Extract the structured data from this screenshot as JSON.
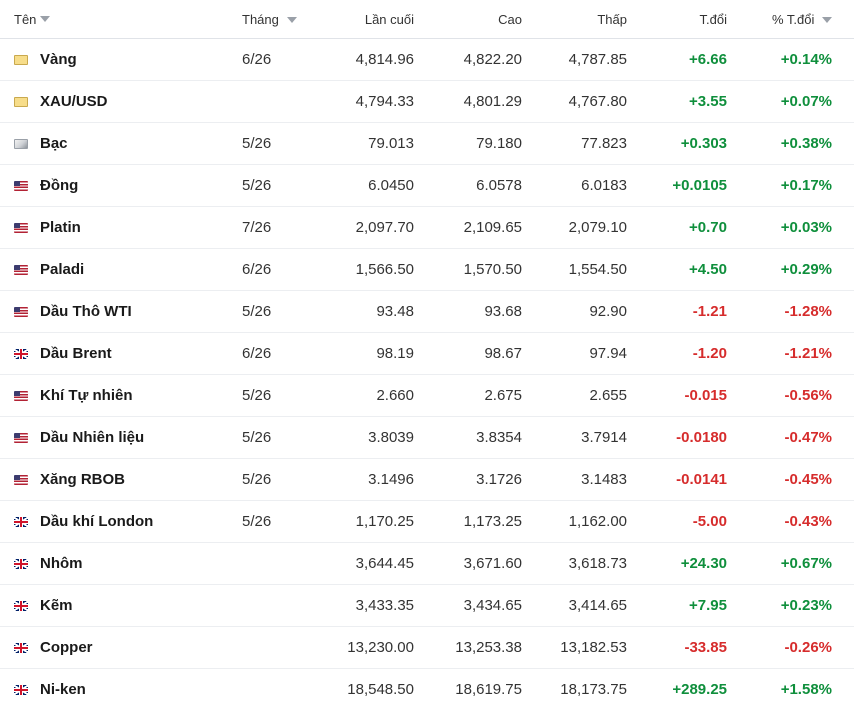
{
  "header": {
    "name": "Tên",
    "month": "Tháng",
    "last": "Lần cuối",
    "high": "Cao",
    "low": "Thấp",
    "change": "T.đổi",
    "change_pct": "% T.đổi"
  },
  "rows": [
    {
      "flag": "gold-icon",
      "name": "Vàng",
      "month": "6/26",
      "last": "4,814.96",
      "high": "4,822.20",
      "low": "4,787.85",
      "change": "+6.66",
      "change_pct": "+0.14%",
      "dir": "up"
    },
    {
      "flag": "gold-icon",
      "name": "XAU/USD",
      "month": "",
      "last": "4,794.33",
      "high": "4,801.29",
      "low": "4,767.80",
      "change": "+3.55",
      "change_pct": "+0.07%",
      "dir": "up"
    },
    {
      "flag": "silver-icon",
      "name": "Bạc",
      "month": "5/26",
      "last": "79.013",
      "high": "79.180",
      "low": "77.823",
      "change": "+0.303",
      "change_pct": "+0.38%",
      "dir": "up"
    },
    {
      "flag": "us-flag-icon",
      "name": "Đồng",
      "month": "5/26",
      "last": "6.0450",
      "high": "6.0578",
      "low": "6.0183",
      "change": "+0.0105",
      "change_pct": "+0.17%",
      "dir": "up"
    },
    {
      "flag": "us-flag-icon",
      "name": "Platin",
      "month": "7/26",
      "last": "2,097.70",
      "high": "2,109.65",
      "low": "2,079.10",
      "change": "+0.70",
      "change_pct": "+0.03%",
      "dir": "up"
    },
    {
      "flag": "us-flag-icon",
      "name": "Paladi",
      "month": "6/26",
      "last": "1,566.50",
      "high": "1,570.50",
      "low": "1,554.50",
      "change": "+4.50",
      "change_pct": "+0.29%",
      "dir": "up"
    },
    {
      "flag": "us-flag-icon",
      "name": "Dầu Thô WTI",
      "month": "5/26",
      "last": "93.48",
      "high": "93.68",
      "low": "92.90",
      "change": "-1.21",
      "change_pct": "-1.28%",
      "dir": "down"
    },
    {
      "flag": "uk-flag-icon",
      "name": "Dầu Brent",
      "month": "6/26",
      "last": "98.19",
      "high": "98.67",
      "low": "97.94",
      "change": "-1.20",
      "change_pct": "-1.21%",
      "dir": "down"
    },
    {
      "flag": "us-flag-icon",
      "name": "Khí Tự nhiên",
      "month": "5/26",
      "last": "2.660",
      "high": "2.675",
      "low": "2.655",
      "change": "-0.015",
      "change_pct": "-0.56%",
      "dir": "down"
    },
    {
      "flag": "us-flag-icon",
      "name": "Dầu Nhiên liệu",
      "month": "5/26",
      "last": "3.8039",
      "high": "3.8354",
      "low": "3.7914",
      "change": "-0.0180",
      "change_pct": "-0.47%",
      "dir": "down"
    },
    {
      "flag": "us-flag-icon",
      "name": "Xăng RBOB",
      "month": "5/26",
      "last": "3.1496",
      "high": "3.1726",
      "low": "3.1483",
      "change": "-0.0141",
      "change_pct": "-0.45%",
      "dir": "down"
    },
    {
      "flag": "uk-flag-icon",
      "name": "Dầu khí London",
      "month": "5/26",
      "last": "1,170.25",
      "high": "1,173.25",
      "low": "1,162.00",
      "change": "-5.00",
      "change_pct": "-0.43%",
      "dir": "down"
    },
    {
      "flag": "uk-flag-icon",
      "name": "Nhôm",
      "month": "",
      "last": "3,644.45",
      "high": "3,671.60",
      "low": "3,618.73",
      "change": "+24.30",
      "change_pct": "+0.67%",
      "dir": "up"
    },
    {
      "flag": "uk-flag-icon",
      "name": "Kẽm",
      "month": "",
      "last": "3,433.35",
      "high": "3,434.65",
      "low": "3,414.65",
      "change": "+7.95",
      "change_pct": "+0.23%",
      "dir": "up"
    },
    {
      "flag": "uk-flag-icon",
      "name": "Copper",
      "month": "",
      "last": "13,230.00",
      "high": "13,253.38",
      "low": "13,182.53",
      "change": "-33.85",
      "change_pct": "-0.26%",
      "dir": "down"
    },
    {
      "flag": "uk-flag-icon",
      "name": "Ni-ken",
      "month": "",
      "last": "18,548.50",
      "high": "18,619.75",
      "low": "18,173.75",
      "change": "+289.25",
      "change_pct": "+1.58%",
      "dir": "up"
    }
  ],
  "colors": {
    "up": "#0f8f3c",
    "down": "#d62c2c"
  }
}
